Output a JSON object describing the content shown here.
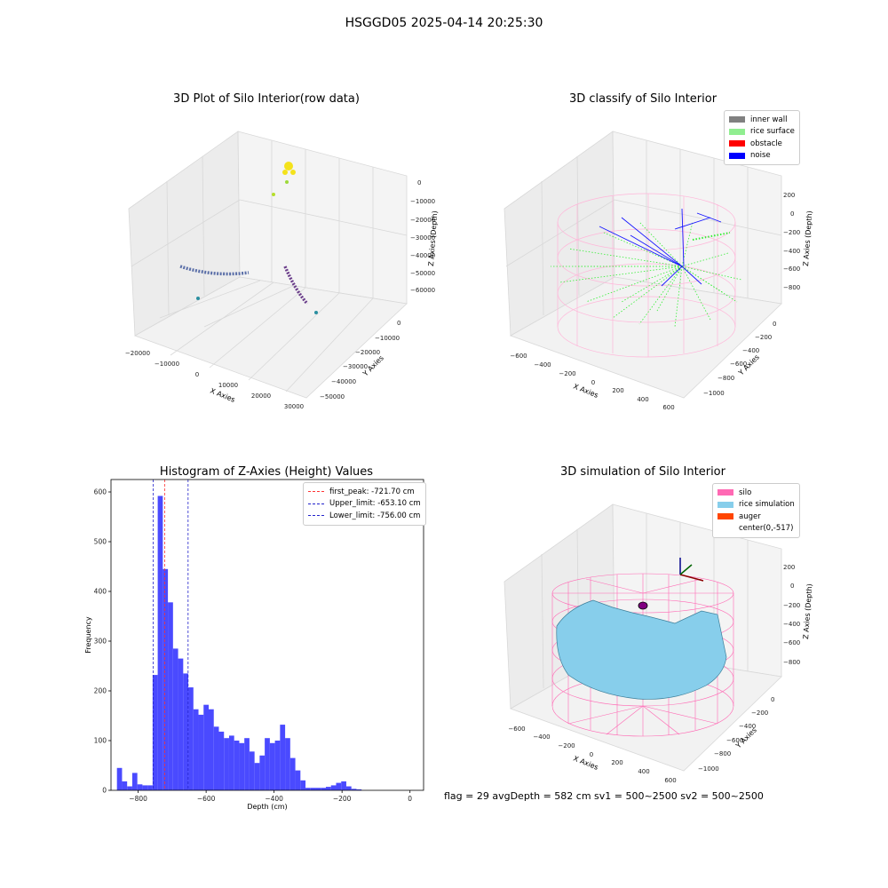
{
  "suptitle": "HSGGD05 2025-04-14 20:25:30",
  "footer_text": "flag = 29  avgDepth = 582 cm  sv1 = 500~2500  sv2 = 500~2500",
  "colors": {
    "hist_bar": "#4a4aff",
    "first_peak": "#ff3333",
    "limit": "#2222cc",
    "inner_wall": "#808080",
    "rice_surface": "#90ee90",
    "obstacle": "#ff0000",
    "noise": "#0000ff",
    "silo": "#ff69b4",
    "rice_simulation": "#87ceeb",
    "auger": "#ff4500"
  },
  "chart_data": [
    {
      "type": "scatter3d",
      "title": "3D Plot of Silo Interior(row data)",
      "xlabel": "X Axies",
      "ylabel": "Y Axies",
      "zlabel": "Z Axies (Depth)",
      "xticks": [
        "−20000",
        "−10000",
        "0",
        "10000",
        "20000",
        "30000"
      ],
      "yticks": [
        "0",
        "−10000",
        "−20000",
        "−30000",
        "−40000",
        "−50000"
      ],
      "zticks": [
        "0",
        "−10000",
        "−20000",
        "−30000",
        "−40000",
        "−50000",
        "−60000"
      ]
    },
    {
      "type": "scatter3d",
      "title": "3D classify of Silo Interior",
      "xlabel": "X Axies",
      "ylabel": "Y Axies",
      "zlabel": "Z Axies (Depth)",
      "xticks": [
        "−600",
        "−400",
        "−200",
        "0",
        "200",
        "400",
        "600"
      ],
      "yticks": [
        "0",
        "−200",
        "−400",
        "−600",
        "−800",
        "−1000"
      ],
      "zticks": [
        "200",
        "0",
        "−200",
        "−400",
        "−600",
        "−800"
      ],
      "legend": [
        "inner wall",
        "rice surface",
        "obstacle",
        "noise"
      ],
      "legend_loc": "upper right"
    },
    {
      "type": "bar",
      "title": "Histogram of Z-Axies (Height) Values",
      "xlabel": "Depth (cm)",
      "ylabel": "Frequency",
      "xlim": [
        -880,
        40
      ],
      "ylim": [
        0,
        625
      ],
      "xticks": [
        -800,
        -600,
        -400,
        -200,
        0
      ],
      "xtick_labels": [
        "−800",
        "−600",
        "−400",
        "−200",
        "0"
      ],
      "yticks": [
        0,
        100,
        200,
        300,
        400,
        500,
        600
      ],
      "bin_width": 15,
      "bin_start": -862.5,
      "values": [
        45,
        18,
        8,
        35,
        12,
        10,
        10,
        232,
        592,
        445,
        378,
        285,
        265,
        235,
        207,
        163,
        152,
        172,
        163,
        128,
        118,
        105,
        110,
        100,
        95,
        105,
        78,
        55,
        70,
        105,
        95,
        100,
        132,
        105,
        65,
        40,
        20,
        5,
        5,
        5,
        5,
        7,
        10,
        15,
        18,
        8,
        3,
        2
      ],
      "vlines": [
        {
          "label": "first_peak: -721.70 cm",
          "x": -721.7,
          "color": "#ff3333"
        },
        {
          "label": "Upper_limit: -653.10 cm",
          "x": -653.1,
          "color": "#2222cc"
        },
        {
          "label": "Lower_limit: -756.00 cm",
          "x": -756.0,
          "color": "#2222cc"
        }
      ],
      "legend_loc": "upper right"
    },
    {
      "type": "surface3d",
      "title": "3D simulation of Silo Interior",
      "xlabel": "X Axies",
      "ylabel": "Y Axies",
      "zlabel": "Z Axies (Depth)",
      "xticks": [
        "−600",
        "−400",
        "−200",
        "0",
        "200",
        "400",
        "600"
      ],
      "yticks": [
        "0",
        "−200",
        "−400",
        "−600",
        "−800",
        "−1000"
      ],
      "zticks": [
        "200",
        "0",
        "−200",
        "−400",
        "−600",
        "−800"
      ],
      "legend": [
        "silo",
        "rice simulation",
        "auger",
        "center(0,-517)"
      ],
      "legend_loc": "upper right"
    }
  ]
}
